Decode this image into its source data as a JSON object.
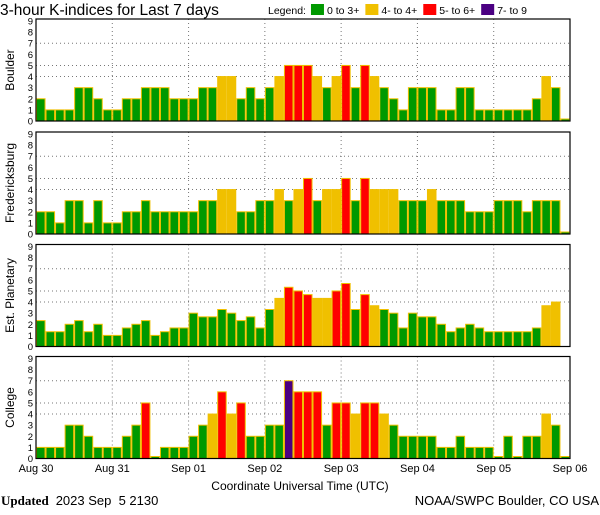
{
  "chart_data": {
    "type": "bar",
    "title": "3-hour K-indices for Last 7 days",
    "legend": {
      "label": "Legend:",
      "placement": "top-right",
      "entries": [
        {
          "label": "0 to 3+",
          "color": "#009900"
        },
        {
          "label": "4- to 4+",
          "color": "#f0c000"
        },
        {
          "label": "5- to 6+",
          "color": "#ff0000"
        },
        {
          "label": "7- to 9",
          "color": "#4b0082"
        }
      ]
    },
    "bar_outline_color": "#f0c000",
    "xlabel": "Coordinate Universal Time (UTC)",
    "x_tick_labels": [
      "Aug 30",
      "Aug 31",
      "Sep 01",
      "Sep 02",
      "Sep 03",
      "Sep 04",
      "Sep 05",
      "Sep 06"
    ],
    "y_tick_labels": [
      "0",
      "1",
      "2",
      "3",
      "4",
      "5",
      "6",
      "7",
      "8",
      "9"
    ],
    "ylim": [
      0,
      9
    ],
    "gridlines_y": [
      4,
      5,
      7
    ],
    "gridlines_x": "daily",
    "interval_hours": 3,
    "panels": [
      {
        "name": "Boulder",
        "values": [
          2,
          1,
          1,
          1,
          3,
          3,
          2,
          1,
          1,
          2,
          2,
          3,
          3,
          3,
          2,
          2,
          2,
          3,
          3,
          4,
          4,
          2,
          3,
          2,
          3,
          4,
          5,
          5,
          5,
          4,
          3,
          4,
          5,
          3,
          5,
          4,
          3,
          2,
          1,
          3,
          3,
          3,
          1,
          1,
          3,
          3,
          1,
          1,
          1,
          1,
          1,
          1,
          2,
          4,
          3,
          0
        ]
      },
      {
        "name": "Fredericksburg",
        "values": [
          2,
          2,
          1,
          3,
          3,
          1,
          3,
          1,
          1,
          2,
          2,
          3,
          2,
          2,
          2,
          2,
          2,
          3,
          3,
          4,
          4,
          2,
          2,
          3,
          3,
          4,
          3,
          4,
          5,
          3,
          4,
          4,
          5,
          3,
          5,
          4,
          4,
          4,
          3,
          3,
          3,
          4,
          3,
          3,
          3,
          2,
          2,
          2,
          3,
          3,
          3,
          2,
          3,
          3,
          3,
          0
        ]
      },
      {
        "name": "Est. Planetary",
        "values": [
          2.33,
          1.33,
          1.33,
          2,
          2.33,
          1.33,
          2,
          1,
          1,
          1.67,
          2,
          2.33,
          1,
          1.33,
          1.67,
          1.67,
          3,
          2.67,
          2.67,
          3.33,
          3,
          2.33,
          2.67,
          1.67,
          3.33,
          4.33,
          5.33,
          5,
          4.67,
          4.33,
          4.33,
          5,
          5.67,
          3.33,
          4.67,
          3.67,
          3.33,
          3,
          1.67,
          3,
          2.67,
          2.67,
          2,
          1.33,
          1.67,
          2,
          1.67,
          1.33,
          1.33,
          1.33,
          1.33,
          1.33,
          1.67,
          3.67,
          4,
          null
        ]
      },
      {
        "name": "College",
        "values": [
          1,
          1,
          1,
          3,
          3,
          2,
          1,
          1,
          1,
          2,
          3,
          5,
          0,
          1,
          1,
          1,
          2,
          3,
          4,
          6,
          4,
          5,
          2,
          2,
          3,
          3,
          7,
          6,
          6,
          6,
          3,
          5,
          5,
          4,
          5,
          5,
          4,
          3,
          2,
          2,
          2,
          2,
          1,
          1,
          2,
          1,
          1,
          1,
          0,
          2,
          0,
          2,
          2,
          4,
          3,
          0
        ]
      }
    ]
  },
  "footer": {
    "updated_label": "Updated",
    "updated_value": "2023 Sep  5 2130",
    "credit": "NOAA/SWPC Boulder, CO USA"
  }
}
